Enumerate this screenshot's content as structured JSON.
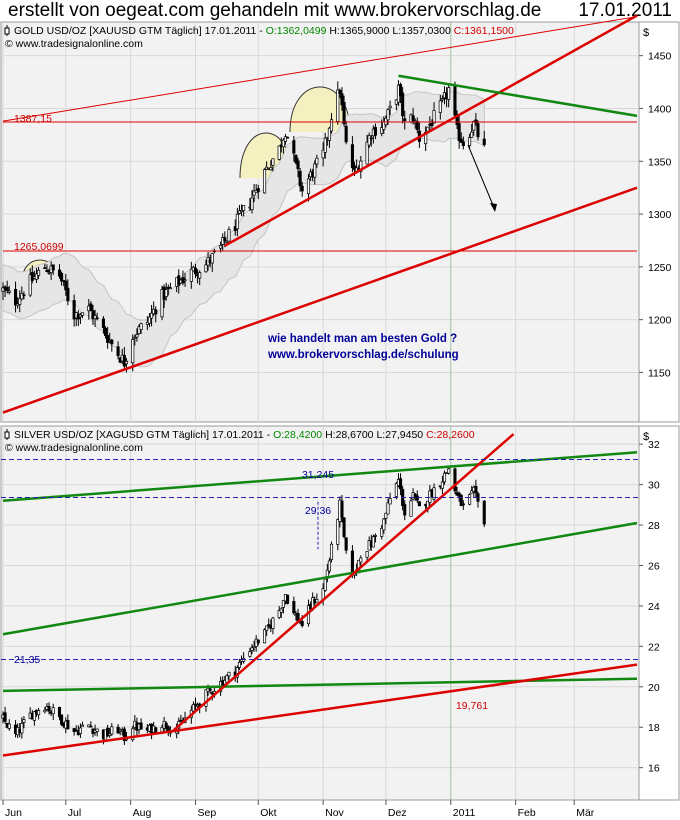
{
  "header": {
    "title": "erstellt von oegeat.com gehandeln mit www.brokervorschlag.de",
    "date": "17.01.2011"
  },
  "chart_data": [
    {
      "type": "line",
      "panel": "gold",
      "info_prefix": "GOLD USD/OZ [XAUUSD GTM  Täglich] 17.01.2011 - ",
      "ohlc": {
        "open": "O:1362,0499",
        "high": "H:1365,9000",
        "low": "L:1357,0300",
        "close": "C:1361,1500"
      },
      "source": "© www.tradesignalonline.com",
      "unit": "$",
      "ylim": [
        1105,
        1480
      ],
      "y_ticks": [
        1150,
        1200,
        1250,
        1300,
        1350,
        1400,
        1450
      ],
      "level_labels": [
        {
          "text": "1387,15",
          "y": 1387.15
        },
        {
          "text": "1265,0699",
          "y": 1265.07
        }
      ],
      "annotation": [
        "wie handelt man am besten Gold ?",
        "www.brokervorschlag.de/schulung"
      ],
      "anchor_points": [
        [
          "2010-06-01",
          1228
        ],
        [
          "2010-06-07",
          1218
        ],
        [
          "2010-06-14",
          1236
        ],
        [
          "2010-06-21",
          1250
        ],
        [
          "2010-06-28",
          1242
        ],
        [
          "2010-07-05",
          1205
        ],
        [
          "2010-07-12",
          1210
        ],
        [
          "2010-07-19",
          1190
        ],
        [
          "2010-07-26",
          1168
        ],
        [
          "2010-07-29",
          1160
        ],
        [
          "2010-08-02",
          1185
        ],
        [
          "2010-08-09",
          1198
        ],
        [
          "2010-08-16",
          1222
        ],
        [
          "2010-08-23",
          1234
        ],
        [
          "2010-08-30",
          1245
        ],
        [
          "2010-09-06",
          1252
        ],
        [
          "2010-09-13",
          1268
        ],
        [
          "2010-09-20",
          1290
        ],
        [
          "2010-09-27",
          1312
        ],
        [
          "2010-10-04",
          1340
        ],
        [
          "2010-10-11",
          1362
        ],
        [
          "2010-10-14",
          1380
        ],
        [
          "2010-10-18",
          1352
        ],
        [
          "2010-10-22",
          1322
        ],
        [
          "2010-10-27",
          1340
        ],
        [
          "2010-11-01",
          1356
        ],
        [
          "2010-11-05",
          1394
        ],
        [
          "2010-11-09",
          1418
        ],
        [
          "2010-11-12",
          1365
        ],
        [
          "2010-11-16",
          1338
        ],
        [
          "2010-11-19",
          1352
        ],
        [
          "2010-11-24",
          1378
        ],
        [
          "2010-11-30",
          1386
        ],
        [
          "2010-12-03",
          1398
        ],
        [
          "2010-12-07",
          1418
        ],
        [
          "2010-12-10",
          1385
        ],
        [
          "2010-12-14",
          1392
        ],
        [
          "2010-12-17",
          1372
        ],
        [
          "2010-12-22",
          1385
        ],
        [
          "2010-12-28",
          1404
        ],
        [
          "2010-12-31",
          1418
        ],
        [
          "2011-01-04",
          1378
        ],
        [
          "2011-01-07",
          1368
        ],
        [
          "2011-01-12",
          1385
        ],
        [
          "2011-01-17",
          1361
        ]
      ],
      "lines": [
        {
          "color": "#dd0000",
          "width": 1,
          "points": [
            [
              "2010-06-01",
              1388
            ],
            [
              "2011-03-31",
              1487
            ]
          ]
        },
        {
          "color": "#dd0000",
          "width": 2.5,
          "points": [
            [
              "2010-06-01",
              1112
            ],
            [
              "2011-03-31",
              1325
            ]
          ]
        },
        {
          "color": "#dd0000",
          "width": 2.5,
          "points": [
            [
              "2010-09-15",
              1270
            ],
            [
              "2011-03-31",
              1488
            ]
          ]
        },
        {
          "color": "#118811",
          "width": 2.5,
          "points": [
            [
              "2010-12-07",
              1431
            ],
            [
              "2011-03-31",
              1393
            ]
          ]
        },
        {
          "color": "#dd0000",
          "width": 1,
          "points": [
            [
              "2010-06-01",
              1387.15
            ],
            [
              "2011-03-31",
              1387.15
            ]
          ]
        },
        {
          "color": "#dd0000",
          "width": 1,
          "points": [
            [
              "2010-06-01",
              1265.07
            ],
            [
              "2011-03-31",
              1265.07
            ]
          ]
        }
      ],
      "grid": true
    },
    {
      "type": "line",
      "panel": "silver",
      "info_prefix": "SILVER USD/OZ [XAGUSD GTM  Täglich] 17.01.2011 - ",
      "ohlc": {
        "open": "O:28,4200",
        "high": "H:28,6700",
        "low": "L:27,9450",
        "close": "C:28,2600"
      },
      "source": "© www.tradesignalonline.com",
      "unit": "$",
      "ylim": [
        14.5,
        32.8
      ],
      "y_ticks": [
        16,
        18,
        20,
        22,
        24,
        26,
        28,
        30,
        32
      ],
      "level_labels": [
        {
          "text": "31,245",
          "y": 31.245
        },
        {
          "text": "29,36",
          "y": 29.36
        },
        {
          "text": "21,35",
          "y": 21.35
        },
        {
          "text": "19,761",
          "y": 19.761
        }
      ],
      "anchor_points": [
        [
          "2010-06-01",
          18.4
        ],
        [
          "2010-06-07",
          17.6
        ],
        [
          "2010-06-14",
          18.6
        ],
        [
          "2010-06-21",
          19.1
        ],
        [
          "2010-06-28",
          18.5
        ],
        [
          "2010-07-05",
          17.8
        ],
        [
          "2010-07-12",
          18.1
        ],
        [
          "2010-07-19",
          17.6
        ],
        [
          "2010-07-26",
          17.9
        ],
        [
          "2010-07-29",
          17.5
        ],
        [
          "2010-08-02",
          18.1
        ],
        [
          "2010-08-09",
          17.8
        ],
        [
          "2010-08-16",
          18.2
        ],
        [
          "2010-08-23",
          17.9
        ],
        [
          "2010-08-30",
          18.8
        ],
        [
          "2010-09-06",
          19.6
        ],
        [
          "2010-09-13",
          20.2
        ],
        [
          "2010-09-20",
          20.8
        ],
        [
          "2010-09-27",
          21.9
        ],
        [
          "2010-10-04",
          22.6
        ],
        [
          "2010-10-11",
          23.8
        ],
        [
          "2010-10-14",
          24.6
        ],
        [
          "2010-10-18",
          23.6
        ],
        [
          "2010-10-22",
          23.1
        ],
        [
          "2010-10-27",
          24.2
        ],
        [
          "2010-11-01",
          24.8
        ],
        [
          "2010-11-05",
          26.8
        ],
        [
          "2010-11-09",
          29.0
        ],
        [
          "2010-11-12",
          26.5
        ],
        [
          "2010-11-16",
          25.5
        ],
        [
          "2010-11-19",
          26.6
        ],
        [
          "2010-11-24",
          27.1
        ],
        [
          "2010-11-30",
          28.2
        ],
        [
          "2010-12-03",
          29.3
        ],
        [
          "2010-12-07",
          30.2
        ],
        [
          "2010-12-10",
          28.6
        ],
        [
          "2010-12-14",
          29.4
        ],
        [
          "2010-12-17",
          28.8
        ],
        [
          "2010-12-22",
          29.5
        ],
        [
          "2010-12-28",
          30.3
        ],
        [
          "2010-12-31",
          30.8
        ],
        [
          "2011-01-04",
          29.4
        ],
        [
          "2011-01-07",
          28.9
        ],
        [
          "2011-01-12",
          29.6
        ],
        [
          "2011-01-17",
          28.26
        ]
      ],
      "lines": [
        {
          "color": "#118811",
          "width": 2.5,
          "points": [
            [
              "2010-06-01",
              29.2
            ],
            [
              "2011-03-31",
              31.6
            ]
          ]
        },
        {
          "color": "#118811",
          "width": 2.5,
          "points": [
            [
              "2010-06-01",
              22.6
            ],
            [
              "2011-03-31",
              28.1
            ]
          ]
        },
        {
          "color": "#118811",
          "width": 2.5,
          "points": [
            [
              "2010-06-01",
              19.8
            ],
            [
              "2011-03-31",
              20.4
            ]
          ]
        },
        {
          "color": "#dd0000",
          "width": 2.5,
          "points": [
            [
              "2010-06-01",
              16.6
            ],
            [
              "2011-03-31",
              21.1
            ]
          ]
        },
        {
          "color": "#dd0000",
          "width": 2.5,
          "points": [
            [
              "2010-08-21",
              17.8
            ],
            [
              "2011-01-31",
              32.5
            ]
          ]
        }
      ],
      "grid": true
    }
  ],
  "x_axis": {
    "labels": [
      "Jun",
      "Jul",
      "Aug",
      "Sep",
      "Okt",
      "Nov",
      "Dez",
      "2011",
      "Feb",
      "Mär"
    ],
    "dates": [
      "2010-06-01",
      "2010-07-01",
      "2010-08-01",
      "2010-09-01",
      "2010-10-01",
      "2010-11-01",
      "2010-12-01",
      "2011-01-01",
      "2011-02-01",
      "2011-03-01"
    ]
  }
}
